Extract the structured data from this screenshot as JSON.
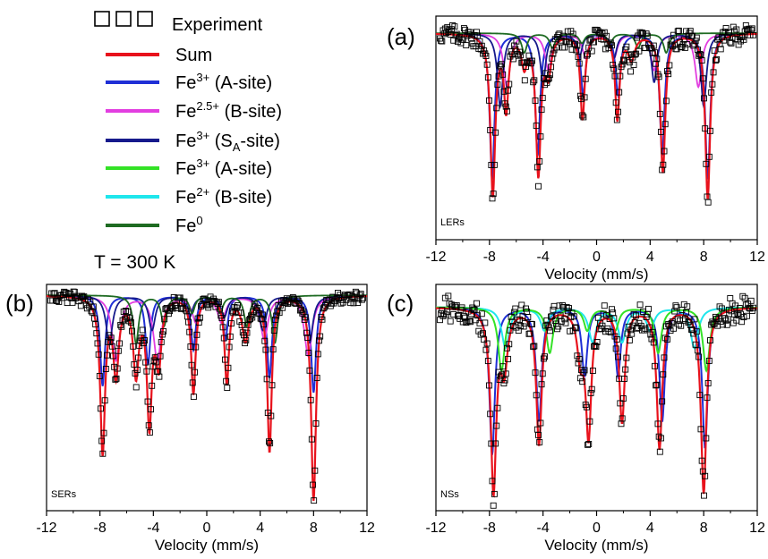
{
  "legend": {
    "items": [
      {
        "label": "Experiment",
        "base": "",
        "sup": "",
        "sub": "",
        "tail": "",
        "color": "#000000",
        "marker": "square"
      },
      {
        "label": "Sum",
        "base": "",
        "sup": "",
        "sub": "",
        "tail": "",
        "color": "#e8121c",
        "marker": "line"
      },
      {
        "label": "",
        "base": "Fe",
        "sup": "3+",
        "sub": "",
        "tail": " (A-site)",
        "color": "#1f2fd6",
        "marker": "line"
      },
      {
        "label": "",
        "base": "Fe",
        "sup": "2.5+",
        "sub": "",
        "tail": " (B-site)",
        "color": "#e23ee0",
        "marker": "line"
      },
      {
        "label": "",
        "base": "Fe",
        "sup": "3+",
        "sub": "A",
        "tail": "-site)",
        "pre_sub": " (S",
        "color": "#161a8c",
        "marker": "line"
      },
      {
        "label": "",
        "base": "Fe",
        "sup": "3+",
        "sub": "",
        "tail": " (A-site)",
        "color": "#33e226",
        "marker": "line"
      },
      {
        "label": "",
        "base": "Fe",
        "sup": "2+",
        "sub": "",
        "tail": " (B-site)",
        "color": "#1fe6ec",
        "marker": "line"
      },
      {
        "label": "",
        "base": "Fe",
        "sup": "0",
        "sub": "",
        "tail": "",
        "color": "#1e6b22",
        "marker": "line"
      }
    ],
    "temperature": "T = 300 K"
  },
  "chart_data": [
    {
      "type": "line",
      "panel_label": "(a)",
      "inset_label": "LERs",
      "xlabel": "Velocity (mm/s)",
      "xlim": [
        -12,
        12
      ],
      "xticks": [
        -12,
        -8,
        -4,
        0,
        4,
        8,
        12
      ],
      "xtick_labels": [
        "-12",
        "-8",
        "-4",
        "0",
        "4",
        "8",
        "12"
      ],
      "series": [
        {
          "color": "#e8121c",
          "width": 2.2,
          "sum": true,
          "baseline": 1.0,
          "dips": [
            [
              -7.75,
              0.66,
              0.22
            ],
            [
              -4.35,
              0.57,
              0.22
            ],
            [
              -1.05,
              0.35,
              0.2
            ],
            [
              1.55,
              0.35,
              0.2
            ],
            [
              4.95,
              0.57,
              0.22
            ],
            [
              8.3,
              0.68,
              0.22
            ],
            [
              -6.75,
              0.3,
              0.2
            ],
            [
              -3.6,
              0.15,
              0.25
            ],
            [
              -5.4,
              0.12,
              0.25
            ],
            [
              2.6,
              0.1,
              0.3
            ]
          ]
        },
        {
          "color": "#1f2fd6",
          "width": 2.0,
          "baseline": 1.0,
          "dips": [
            [
              -7.8,
              0.6,
              0.22
            ],
            [
              -4.4,
              0.5,
              0.22
            ],
            [
              -1.0,
              0.25,
              0.22
            ],
            [
              1.6,
              0.25,
              0.22
            ],
            [
              4.9,
              0.5,
              0.22
            ],
            [
              8.3,
              0.6,
              0.22
            ]
          ]
        },
        {
          "color": "#e23ee0",
          "width": 1.8,
          "baseline": 1.0,
          "dips": [
            [
              -6.7,
              0.22,
              0.3
            ],
            [
              -3.6,
              0.15,
              0.3
            ],
            [
              -0.8,
              0.1,
              0.3
            ],
            [
              1.3,
              0.1,
              0.3
            ],
            [
              4.3,
              0.15,
              0.3
            ],
            [
              7.6,
              0.22,
              0.3
            ]
          ]
        },
        {
          "color": "#161a8c",
          "width": 1.8,
          "baseline": 1.0,
          "dips": [
            [
              -7.2,
              0.3,
              0.25
            ],
            [
              -4.0,
              0.2,
              0.25
            ],
            [
              -1.3,
              0.1,
              0.25
            ],
            [
              1.3,
              0.1,
              0.25
            ],
            [
              4.3,
              0.2,
              0.25
            ],
            [
              8.0,
              0.3,
              0.25
            ]
          ]
        },
        {
          "color": "#1e6b22",
          "width": 1.8,
          "baseline": 1.0,
          "dips": [
            [
              -5.4,
              0.08,
              0.25
            ],
            [
              -3.3,
              0.06,
              0.25
            ],
            [
              -1.1,
              0.04,
              0.25
            ],
            [
              1.0,
              0.04,
              0.25
            ],
            [
              3.1,
              0.06,
              0.25
            ],
            [
              5.2,
              0.08,
              0.25
            ]
          ]
        }
      ],
      "experiment_noise": 0.04,
      "experiment_count": 300
    },
    {
      "type": "line",
      "panel_label": "(b)",
      "inset_label": "SERs",
      "xlabel": "Velocity (mm/s)",
      "xlim": [
        -12,
        12
      ],
      "xticks": [
        -12,
        -8,
        -4,
        0,
        4,
        8,
        12
      ],
      "xtick_labels": [
        "-12",
        "-8",
        "-4",
        "0",
        "4",
        "8",
        "12"
      ],
      "series": [
        {
          "color": "#e8121c",
          "width": 2.2,
          "sum": true,
          "baseline": 1.0,
          "dips": [
            [
              -7.8,
              0.72,
              0.22
            ],
            [
              -4.3,
              0.58,
              0.22
            ],
            [
              -1.0,
              0.45,
              0.2
            ],
            [
              1.5,
              0.4,
              0.2
            ],
            [
              4.7,
              0.72,
              0.2
            ],
            [
              8.0,
              0.95,
              0.22
            ],
            [
              -6.8,
              0.35,
              0.25
            ],
            [
              -5.3,
              0.35,
              0.25
            ],
            [
              -3.6,
              0.3,
              0.25
            ],
            [
              2.9,
              0.2,
              0.3
            ]
          ]
        },
        {
          "color": "#1f2fd6",
          "width": 2.0,
          "baseline": 1.0,
          "dips": [
            [
              -7.8,
              0.42,
              0.22
            ],
            [
              -4.4,
              0.32,
              0.22
            ],
            [
              -1.0,
              0.25,
              0.22
            ],
            [
              1.4,
              0.2,
              0.22
            ],
            [
              4.7,
              0.38,
              0.22
            ],
            [
              8.0,
              0.45,
              0.22
            ]
          ]
        },
        {
          "color": "#e23ee0",
          "width": 1.8,
          "baseline": 1.0,
          "dips": [
            [
              -6.8,
              0.3,
              0.35
            ],
            [
              -3.7,
              0.3,
              0.35
            ],
            [
              -0.8,
              0.12,
              0.35
            ],
            [
              1.1,
              0.12,
              0.35
            ],
            [
              4.3,
              0.2,
              0.35
            ],
            [
              7.6,
              0.28,
              0.35
            ]
          ]
        },
        {
          "color": "#161a8c",
          "width": 1.8,
          "baseline": 1.0,
          "dips": [
            [
              -7.3,
              0.22,
              0.3
            ],
            [
              -4.1,
              0.16,
              0.3
            ],
            [
              -1.3,
              0.1,
              0.3
            ],
            [
              1.3,
              0.1,
              0.3
            ],
            [
              4.2,
              0.16,
              0.3
            ],
            [
              7.7,
              0.22,
              0.3
            ]
          ]
        },
        {
          "color": "#1e6b22",
          "width": 1.8,
          "baseline": 1.0,
          "dips": [
            [
              -5.3,
              0.22,
              0.25
            ],
            [
              -3.2,
              0.14,
              0.25
            ],
            [
              -1.1,
              0.08,
              0.25
            ],
            [
              1.0,
              0.08,
              0.25
            ],
            [
              3.0,
              0.14,
              0.25
            ],
            [
              5.1,
              0.22,
              0.25
            ]
          ]
        }
      ],
      "experiment_noise": 0.03,
      "experiment_count": 300
    },
    {
      "type": "line",
      "panel_label": "(c)",
      "inset_label": "NSs",
      "xlabel": "Velocity (mm/s)",
      "xlim": [
        -12,
        12
      ],
      "xticks": [
        -12,
        -8,
        -4,
        0,
        4,
        8,
        12
      ],
      "xtick_labels": [
        "-12",
        "-8",
        "-4",
        "0",
        "4",
        "8",
        "12"
      ],
      "series": [
        {
          "color": "#e8121c",
          "width": 2.2,
          "sum": true,
          "baseline": 1.0,
          "dips": [
            [
              -7.7,
              0.8,
              0.25
            ],
            [
              -4.3,
              0.6,
              0.25
            ],
            [
              -0.6,
              0.55,
              0.25
            ],
            [
              1.9,
              0.5,
              0.25
            ],
            [
              4.7,
              0.62,
              0.25
            ],
            [
              8.0,
              0.82,
              0.25
            ],
            [
              -6.9,
              0.25,
              0.3
            ],
            [
              -1.2,
              0.2,
              0.3
            ]
          ]
        },
        {
          "color": "#1f2fd6",
          "width": 2.0,
          "baseline": 1.0,
          "dips": [
            [
              -7.8,
              0.65,
              0.25
            ],
            [
              -4.3,
              0.5,
              0.25
            ],
            [
              -0.9,
              0.3,
              0.25
            ],
            [
              1.6,
              0.3,
              0.25
            ],
            [
              4.9,
              0.5,
              0.25
            ],
            [
              8.1,
              0.62,
              0.25
            ]
          ]
        },
        {
          "color": "#1fe6ec",
          "width": 2.0,
          "baseline": 1.0,
          "dips": [
            [
              -6.8,
              0.18,
              0.35
            ],
            [
              -3.9,
              0.1,
              0.35
            ],
            [
              -0.3,
              0.15,
              0.35
            ],
            [
              1.9,
              0.15,
              0.35
            ],
            [
              4.0,
              0.1,
              0.35
            ],
            [
              7.3,
              0.18,
              0.35
            ]
          ]
        },
        {
          "color": "#33e226",
          "width": 2.0,
          "baseline": 1.0,
          "dips": [
            [
              -7.1,
              0.28,
              0.3
            ],
            [
              -3.5,
              0.2,
              0.3
            ],
            [
              -0.7,
              0.1,
              0.3
            ],
            [
              1.4,
              0.1,
              0.3
            ],
            [
              4.6,
              0.2,
              0.3
            ],
            [
              8.2,
              0.28,
              0.3
            ]
          ]
        }
      ],
      "experiment_noise": 0.06,
      "experiment_count": 300
    }
  ]
}
